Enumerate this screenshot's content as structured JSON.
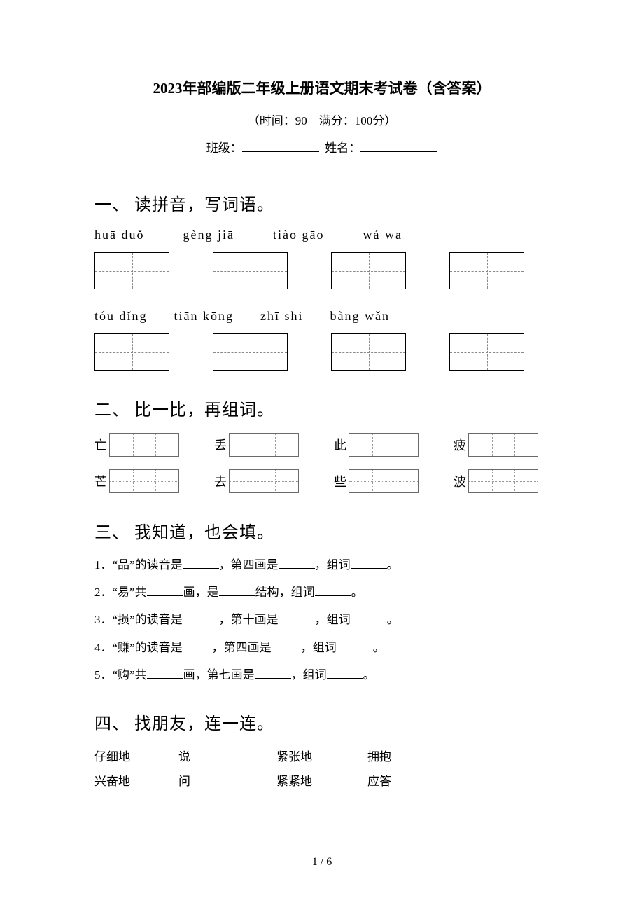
{
  "header": {
    "title": "2023年部编版二年级上册语文期末考试卷（含答案）",
    "subtitle": "（时间：90　满分：100分）",
    "class_label": "班级：",
    "name_label": "姓名："
  },
  "s1": {
    "heading": "一、 读拼音，写词语。",
    "pinyin_row1": [
      "huā duǒ",
      "gèng jiā",
      "tiào gāo",
      "wá wa"
    ],
    "pinyin_row2": [
      "tóu dǐng",
      "tiān kōng",
      "zhī shi",
      "bàng wǎn"
    ]
  },
  "s2": {
    "heading": "二、 比一比，再组词。",
    "row1": [
      "亡",
      "丢",
      "此",
      "疲"
    ],
    "row2": [
      "芒",
      "去",
      "些",
      "波"
    ]
  },
  "s3": {
    "heading": "三、 我知道，也会填。",
    "l1": {
      "n": "1．",
      "a": "“品”的读音是",
      "b": "，第四画是",
      "c": "，组词",
      "d": "。"
    },
    "l2": {
      "n": "2．",
      "a": "“易”共",
      "b": "画，是",
      "c": "结构，组词",
      "d": "。"
    },
    "l3": {
      "n": "3．",
      "a": "“损”的读音是",
      "b": "，第十画是",
      "c": "，组词",
      "d": "。"
    },
    "l4": {
      "n": "4．",
      "a": "“赚”的读音是",
      "b": "，第四画是",
      "c": "，组词",
      "d": "。"
    },
    "l5": {
      "n": "5．",
      "a": "“购”共",
      "b": "画，第七画是",
      "c": "，组词",
      "d": "。"
    }
  },
  "s4": {
    "heading": "四、 找朋友，连一连。",
    "r1": {
      "a": "仔细地",
      "b": "说",
      "c": "紧张地",
      "d": "拥抱"
    },
    "r2": {
      "a": "兴奋地",
      "b": "问",
      "c": "紧紧地",
      "d": "应答"
    }
  },
  "page": "1 / 6"
}
